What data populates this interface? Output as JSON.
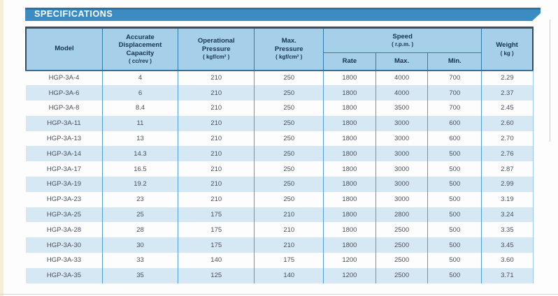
{
  "banner": {
    "title": "SPECIFICATIONS",
    "color": "#3c8cc4"
  },
  "table": {
    "headers": {
      "model": "Model",
      "capacity_label": "Accurate\nDisplacement\nCapacity",
      "capacity_unit": "( cc/rev )",
      "op_pressure_label": "Operational\nPressure",
      "op_pressure_unit": "( kgf/cm² )",
      "max_pressure_label": "Max.\nPressure",
      "max_pressure_unit": "( kgf/cm² )",
      "speed_label": "Speed",
      "speed_unit": "( r.p.m. )",
      "speed_sub": [
        "Rate",
        "Max.",
        "Min."
      ],
      "weight_label": "Weight",
      "weight_unit": "( kg )"
    },
    "rows": [
      [
        "HGP-3A-4",
        "4",
        "210",
        "250",
        "1800",
        "4000",
        "700",
        "2.29"
      ],
      [
        "HGP-3A-6",
        "6",
        "210",
        "250",
        "1800",
        "4000",
        "700",
        "2.37"
      ],
      [
        "HGP-3A-8",
        "8.4",
        "210",
        "250",
        "1800",
        "3500",
        "700",
        "2.45"
      ],
      [
        "HGP-3A-11",
        "11",
        "210",
        "250",
        "1800",
        "3000",
        "600",
        "2.60"
      ],
      [
        "HGP-3A-13",
        "13",
        "210",
        "250",
        "1800",
        "3000",
        "600",
        "2.70"
      ],
      [
        "HGP-3A-14",
        "14.3",
        "210",
        "250",
        "1800",
        "3000",
        "500",
        "2.76"
      ],
      [
        "HGP-3A-17",
        "16.5",
        "210",
        "250",
        "1800",
        "3000",
        "500",
        "2.87"
      ],
      [
        "HGP-3A-19",
        "19.2",
        "210",
        "250",
        "1800",
        "3000",
        "500",
        "2.99"
      ],
      [
        "HGP-3A-23",
        "23",
        "210",
        "250",
        "1800",
        "3000",
        "500",
        "3.19"
      ],
      [
        "HGP-3A-25",
        "25",
        "175",
        "210",
        "1800",
        "2800",
        "500",
        "3.24"
      ],
      [
        "HGP-3A-28",
        "28",
        "175",
        "210",
        "1800",
        "2500",
        "500",
        "3.35"
      ],
      [
        "HGP-3A-30",
        "30",
        "175",
        "210",
        "1800",
        "2500",
        "500",
        "3.45"
      ],
      [
        "HGP-3A-33",
        "33",
        "140",
        "175",
        "1200",
        "2500",
        "500",
        "3.60"
      ],
      [
        "HGP-3A-35",
        "35",
        "125",
        "140",
        "1200",
        "2500",
        "500",
        "3.71"
      ]
    ],
    "colors": {
      "header_bg": "#a6d0ea",
      "header_text": "#16334f",
      "stripe_bg": "#d7e8f5",
      "grid_blue": "#4f9fd0",
      "dark_border": "#424d59"
    }
  }
}
